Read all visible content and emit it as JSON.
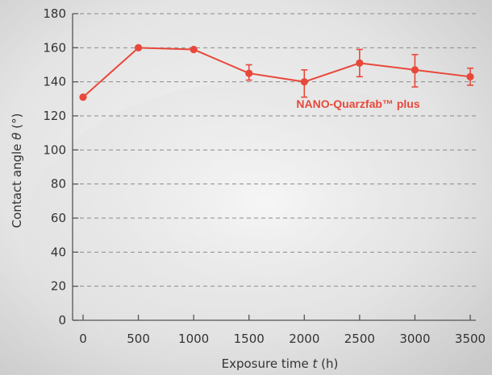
{
  "colors": {
    "series": "#e8483a",
    "axis": "#555555",
    "grid": "#8a8a8a",
    "text": "#333333"
  },
  "chart_data": {
    "type": "line",
    "title": "",
    "xlabel": "Exposure time",
    "xlabel_var": "t",
    "xlabel_unit": "(h)",
    "ylabel": "Contact angle",
    "ylabel_var": "θ",
    "ylabel_unit": "(°)",
    "xlim": [
      0,
      3500
    ],
    "ylim": [
      0,
      180
    ],
    "x_ticks": [
      0,
      500,
      1000,
      1500,
      2000,
      2500,
      3000,
      3500
    ],
    "y_ticks": [
      0,
      20,
      40,
      60,
      80,
      100,
      120,
      140,
      160,
      180
    ],
    "grid": "horizontal dashed",
    "series": [
      {
        "name": "NANO-Quarzfab™ plus",
        "x": [
          0,
          500,
          1000,
          1500,
          2000,
          2500,
          3000,
          3500
        ],
        "y": [
          131,
          160,
          159,
          145,
          140,
          151,
          147,
          143
        ],
        "err_low": [
          0,
          0,
          0,
          4,
          9,
          8,
          10,
          5
        ],
        "err_high": [
          0,
          0,
          0,
          5,
          7,
          8,
          9,
          5
        ]
      }
    ]
  }
}
